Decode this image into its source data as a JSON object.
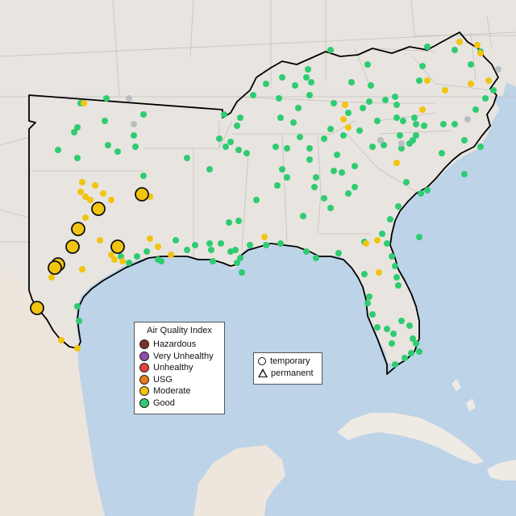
{
  "map": {
    "colors": {
      "water": "#bcd3e8",
      "land": "#e8e4df",
      "borders": "#c2c2c2",
      "region_outline": "#000000",
      "mexico": "#ede4dc",
      "cuba": "#eeeae4"
    }
  },
  "aqi_legend": {
    "title": "Air Quality Index",
    "items": [
      {
        "label": "Hazardous",
        "color": "#7e2f2f"
      },
      {
        "label": "Very Unhealthy",
        "color": "#8e4fa8"
      },
      {
        "label": "Unhealthy",
        "color": "#e8413a"
      },
      {
        "label": "USG",
        "color": "#e87a1b"
      },
      {
        "label": "Moderate",
        "color": "#f1c40f"
      },
      {
        "label": "Good",
        "color": "#2ecc71"
      }
    ]
  },
  "shape_legend": {
    "temporary": "temporary",
    "permanent": "permanent"
  }
}
